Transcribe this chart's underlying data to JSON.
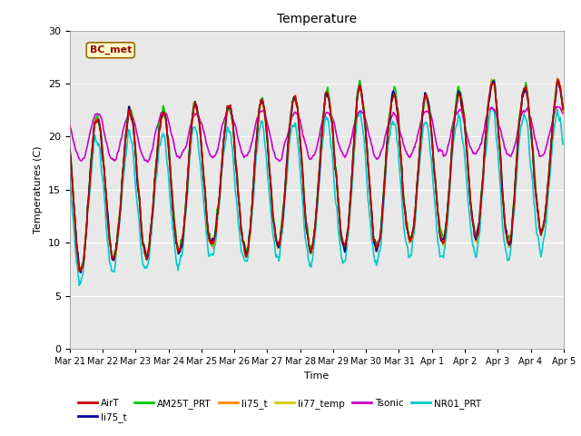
{
  "title": "Temperature",
  "ylabel": "Temperatures (C)",
  "xlabel": "Time",
  "annotation": "BC_met",
  "ylim": [
    0,
    30
  ],
  "yticks": [
    0,
    5,
    10,
    15,
    20,
    25,
    30
  ],
  "xtick_labels": [
    "Mar 21",
    "Mar 22",
    "Mar 23",
    "Mar 24",
    "Mar 25",
    "Mar 26",
    "Mar 27",
    "Mar 28",
    "Mar 29",
    "Mar 30",
    "Mar 31",
    "Apr 1",
    "Apr 2",
    "Apr 3",
    "Apr 4",
    "Apr 5"
  ],
  "series": {
    "AirT": {
      "color": "#cc0000",
      "lw": 1.2
    },
    "li75_t_blue": {
      "color": "#000099",
      "lw": 1.2
    },
    "AM25T_PRT": {
      "color": "#00cc00",
      "lw": 1.2
    },
    "li75_t_orange": {
      "color": "#ff8800",
      "lw": 1.2
    },
    "li77_temp": {
      "color": "#cccc00",
      "lw": 1.2
    },
    "Tsonic": {
      "color": "#cc00cc",
      "lw": 1.2
    },
    "NR01_PRT": {
      "color": "#00cccc",
      "lw": 1.2
    }
  },
  "legend": [
    {
      "label": "AirT",
      "color": "#cc0000"
    },
    {
      "label": "li75_t",
      "color": "#000099"
    },
    {
      "label": "AM25T_PRT",
      "color": "#00cc00"
    },
    {
      "label": "li75_t",
      "color": "#ff8800"
    },
    {
      "label": "li77_temp",
      "color": "#cccc00"
    },
    {
      "label": "Tsonic",
      "color": "#cc00cc"
    },
    {
      "label": "NR01_PRT",
      "color": "#00cccc"
    }
  ],
  "bg_color": "#e8e8e8",
  "fig_bg": "#ffffff"
}
